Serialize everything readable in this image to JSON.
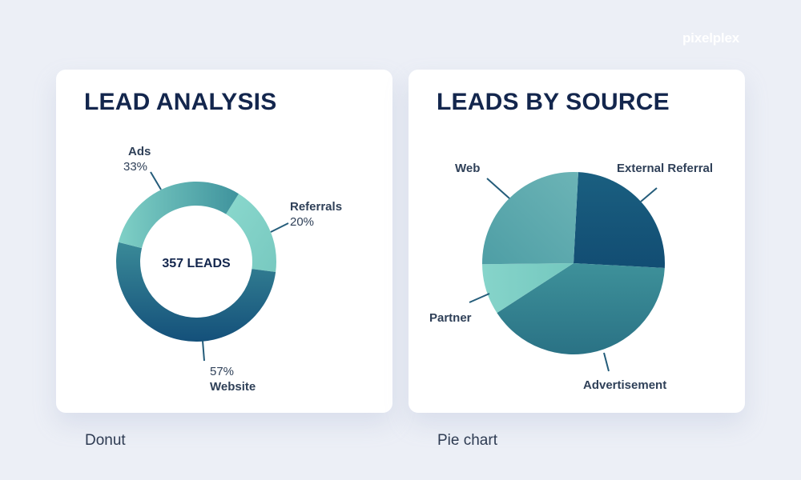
{
  "brand": "pixelplex",
  "captions": {
    "left": "Donut",
    "right": "Pie chart"
  },
  "chart_data": [
    {
      "type": "pie",
      "variant": "donut",
      "title": "LEAD ANALYSIS",
      "center_label": "357 LEADS",
      "slices": [
        {
          "name": "Referrals",
          "value": 20,
          "value_label": "20%",
          "color": "#7fd0c6"
        },
        {
          "name": "Website",
          "value": 57,
          "value_label": "57%",
          "color": "#1f6585"
        },
        {
          "name": "Ads",
          "value": 33,
          "value_label": "33%",
          "color": "#52a9ab"
        }
      ]
    },
    {
      "type": "pie",
      "title": "LEADS BY SOURCE",
      "slices": [
        {
          "name": "External Referral",
          "value": 25,
          "color": "#17567a"
        },
        {
          "name": "Advertisement",
          "value": 40,
          "color": "#37888f"
        },
        {
          "name": "Partner",
          "value": 9,
          "color": "#7fd0c6"
        },
        {
          "name": "Web",
          "value": 26,
          "color": "#5aa8ad"
        }
      ]
    }
  ]
}
